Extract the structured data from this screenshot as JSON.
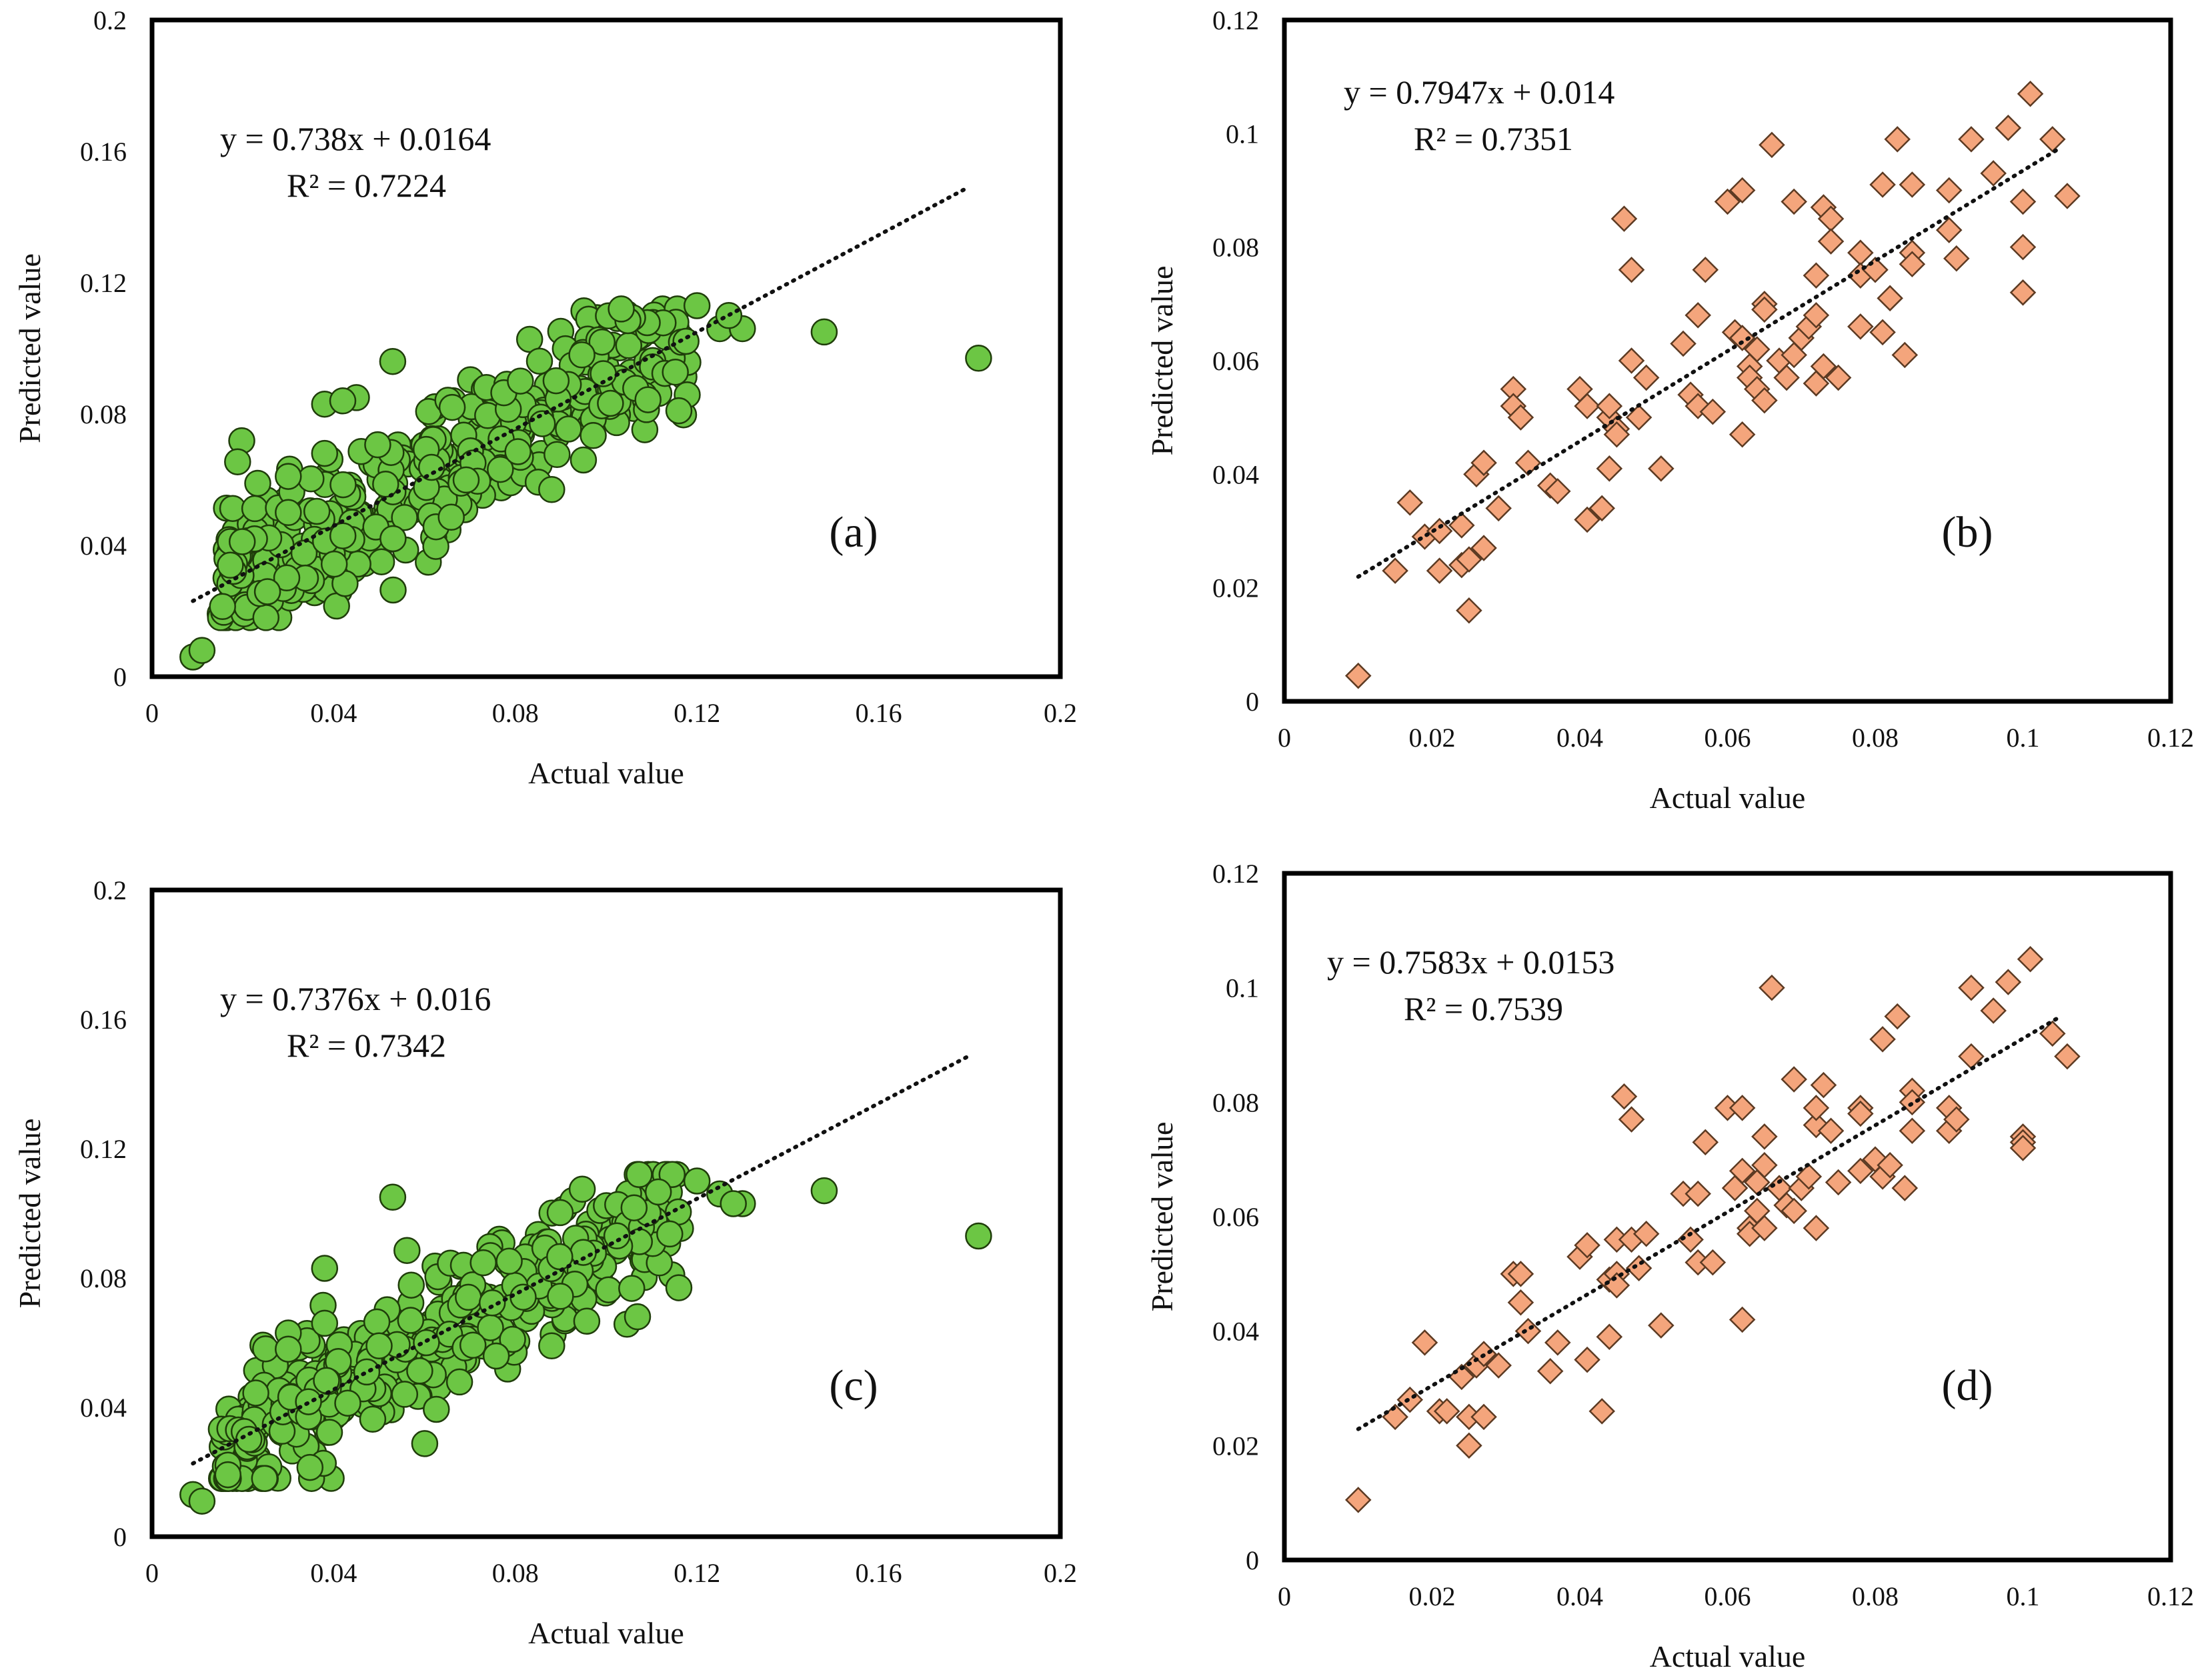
{
  "chart_data": [
    {
      "id": "a",
      "type": "scatter",
      "panel_label": "(a)",
      "xlabel": "Actual value",
      "ylabel": "Predicted value",
      "xlim": [
        0,
        0.2
      ],
      "ylim": [
        0,
        0.2
      ],
      "xticks": [
        "0",
        "0.04",
        "0.08",
        "0.12",
        "0.16",
        "0.2"
      ],
      "yticks": [
        "0",
        "0.04",
        "0.08",
        "0.12",
        "0.16",
        "0.2"
      ],
      "equation": "y = 0.738x + 0.0164",
      "r2": "R² = 0.7224",
      "trend": {
        "slope": 0.738,
        "intercept": 0.0164,
        "x_range": [
          0.009,
          0.18
        ]
      },
      "marker": "circle",
      "color": "#6cc644",
      "outliers": [
        [
          0.009,
          0.006
        ],
        [
          0.011,
          0.008
        ],
        [
          0.148,
          0.105
        ],
        [
          0.182,
          0.097
        ],
        [
          0.116,
          0.081
        ],
        [
          0.053,
          0.096
        ],
        [
          0.045,
          0.085
        ],
        [
          0.038,
          0.083
        ],
        [
          0.042,
          0.084
        ],
        [
          0.12,
          0.113
        ],
        [
          0.125,
          0.106
        ],
        [
          0.13,
          0.106
        ],
        [
          0.127,
          0.11
        ],
        [
          0.095,
          0.066
        ],
        [
          0.088,
          0.057
        ],
        [
          0.03,
          0.061
        ],
        [
          0.03,
          0.05
        ],
        [
          0.038,
          0.068
        ]
      ],
      "cloud": {
        "n": 430,
        "x_range": [
          0.015,
          0.118
        ],
        "seed": 11,
        "noise": 0.0115
      }
    },
    {
      "id": "b",
      "type": "scatter",
      "panel_label": "(b)",
      "xlabel": "Actual value",
      "ylabel": "Predicted value",
      "xlim": [
        0,
        0.12
      ],
      "ylim": [
        0,
        0.12
      ],
      "xticks": [
        "0",
        "0.02",
        "0.04",
        "0.06",
        "0.08",
        "0.1",
        "0.12"
      ],
      "yticks": [
        "0",
        "0.02",
        "0.04",
        "0.06",
        "0.08",
        "0.1",
        "0.12"
      ],
      "equation": "y = 0.7947x + 0.014",
      "r2": "R² = 0.7351",
      "trend": {
        "slope": 0.7947,
        "intercept": 0.014,
        "x_range": [
          0.01,
          0.105
        ]
      },
      "marker": "diamond",
      "color": "#f4a57c",
      "points": [
        [
          0.01,
          0.0045
        ],
        [
          0.015,
          0.023
        ],
        [
          0.017,
          0.035
        ],
        [
          0.019,
          0.029
        ],
        [
          0.021,
          0.023
        ],
        [
          0.021,
          0.03
        ],
        [
          0.024,
          0.024
        ],
        [
          0.024,
          0.031
        ],
        [
          0.025,
          0.016
        ],
        [
          0.025,
          0.025
        ],
        [
          0.026,
          0.04
        ],
        [
          0.027,
          0.027
        ],
        [
          0.027,
          0.042
        ],
        [
          0.029,
          0.034
        ],
        [
          0.031,
          0.055
        ],
        [
          0.031,
          0.052
        ],
        [
          0.032,
          0.05
        ],
        [
          0.033,
          0.042
        ],
        [
          0.036,
          0.038
        ],
        [
          0.037,
          0.037
        ],
        [
          0.04,
          0.055
        ],
        [
          0.041,
          0.052
        ],
        [
          0.041,
          0.032
        ],
        [
          0.043,
          0.034
        ],
        [
          0.044,
          0.041
        ],
        [
          0.044,
          0.05
        ],
        [
          0.044,
          0.052
        ],
        [
          0.045,
          0.048
        ],
        [
          0.045,
          0.047
        ],
        [
          0.046,
          0.085
        ],
        [
          0.047,
          0.076
        ],
        [
          0.047,
          0.06
        ],
        [
          0.048,
          0.05
        ],
        [
          0.049,
          0.057
        ],
        [
          0.051,
          0.041
        ],
        [
          0.054,
          0.063
        ],
        [
          0.055,
          0.054
        ],
        [
          0.056,
          0.068
        ],
        [
          0.056,
          0.052
        ],
        [
          0.057,
          0.076
        ],
        [
          0.058,
          0.051
        ],
        [
          0.06,
          0.088
        ],
        [
          0.061,
          0.065
        ],
        [
          0.062,
          0.09
        ],
        [
          0.062,
          0.047
        ],
        [
          0.062,
          0.064
        ],
        [
          0.063,
          0.059
        ],
        [
          0.063,
          0.057
        ],
        [
          0.064,
          0.055
        ],
        [
          0.064,
          0.062
        ],
        [
          0.065,
          0.07
        ],
        [
          0.065,
          0.069
        ],
        [
          0.065,
          0.053
        ],
        [
          0.066,
          0.098
        ],
        [
          0.067,
          0.06
        ],
        [
          0.068,
          0.057
        ],
        [
          0.069,
          0.088
        ],
        [
          0.069,
          0.061
        ],
        [
          0.07,
          0.064
        ],
        [
          0.071,
          0.066
        ],
        [
          0.072,
          0.068
        ],
        [
          0.072,
          0.056
        ],
        [
          0.072,
          0.075
        ],
        [
          0.073,
          0.087
        ],
        [
          0.073,
          0.059
        ],
        [
          0.074,
          0.085
        ],
        [
          0.074,
          0.081
        ],
        [
          0.075,
          0.057
        ],
        [
          0.078,
          0.079
        ],
        [
          0.078,
          0.075
        ],
        [
          0.078,
          0.066
        ],
        [
          0.08,
          0.076
        ],
        [
          0.081,
          0.091
        ],
        [
          0.081,
          0.065
        ],
        [
          0.082,
          0.071
        ],
        [
          0.083,
          0.099
        ],
        [
          0.084,
          0.061
        ],
        [
          0.085,
          0.091
        ],
        [
          0.085,
          0.079
        ],
        [
          0.085,
          0.077
        ],
        [
          0.09,
          0.09
        ],
        [
          0.09,
          0.083
        ],
        [
          0.091,
          0.078
        ],
        [
          0.093,
          0.099
        ],
        [
          0.096,
          0.093
        ],
        [
          0.098,
          0.101
        ],
        [
          0.1,
          0.088
        ],
        [
          0.1,
          0.08
        ],
        [
          0.1,
          0.072
        ],
        [
          0.101,
          0.107
        ],
        [
          0.104,
          0.099
        ],
        [
          0.106,
          0.089
        ]
      ]
    },
    {
      "id": "c",
      "type": "scatter",
      "panel_label": "(c)",
      "xlabel": "Actual value",
      "ylabel": "Predicted value",
      "xlim": [
        0,
        0.2
      ],
      "ylim": [
        0,
        0.2
      ],
      "xticks": [
        "0",
        "0.04",
        "0.08",
        "0.12",
        "0.16",
        "0.2"
      ],
      "yticks": [
        "0",
        "0.04",
        "0.08",
        "0.12",
        "0.16",
        "0.2"
      ],
      "equation": "y = 0.7376x + 0.016",
      "r2": "R² = 0.7342",
      "trend": {
        "slope": 0.7376,
        "intercept": 0.016,
        "x_range": [
          0.009,
          0.18
        ]
      },
      "marker": "circle",
      "color": "#6cc644",
      "outliers": [
        [
          0.009,
          0.013
        ],
        [
          0.011,
          0.011
        ],
        [
          0.148,
          0.107
        ],
        [
          0.182,
          0.093
        ],
        [
          0.116,
          0.077
        ],
        [
          0.053,
          0.105
        ],
        [
          0.038,
          0.083
        ],
        [
          0.12,
          0.11
        ],
        [
          0.125,
          0.106
        ],
        [
          0.13,
          0.103
        ],
        [
          0.128,
          0.103
        ],
        [
          0.088,
          0.059
        ],
        [
          0.03,
          0.063
        ],
        [
          0.03,
          0.058
        ],
        [
          0.05,
          0.059
        ],
        [
          0.038,
          0.066
        ]
      ],
      "cloud": {
        "n": 430,
        "x_range": [
          0.015,
          0.118
        ],
        "seed": 29,
        "noise": 0.0105
      }
    },
    {
      "id": "d",
      "type": "scatter",
      "panel_label": "(d)",
      "xlabel": "Actual value",
      "ylabel": "Predicted value",
      "xlim": [
        0,
        0.12
      ],
      "ylim": [
        0,
        0.12
      ],
      "xticks": [
        "0",
        "0.02",
        "0.04",
        "0.06",
        "0.08",
        "0.1",
        "0.12"
      ],
      "yticks": [
        "0",
        "0.02",
        "0.04",
        "0.06",
        "0.08",
        "0.1",
        "0.12"
      ],
      "equation": "y = 0.7583x + 0.0153",
      "r2": "R² = 0.7539",
      "trend": {
        "slope": 0.7583,
        "intercept": 0.0153,
        "x_range": [
          0.01,
          0.105
        ]
      },
      "marker": "diamond",
      "color": "#f4a57c",
      "points": [
        [
          0.01,
          0.0105
        ],
        [
          0.015,
          0.025
        ],
        [
          0.017,
          0.028
        ],
        [
          0.019,
          0.038
        ],
        [
          0.021,
          0.026
        ],
        [
          0.022,
          0.026
        ],
        [
          0.024,
          0.032
        ],
        [
          0.025,
          0.02
        ],
        [
          0.025,
          0.025
        ],
        [
          0.026,
          0.034
        ],
        [
          0.027,
          0.025
        ],
        [
          0.027,
          0.036
        ],
        [
          0.029,
          0.034
        ],
        [
          0.031,
          0.05
        ],
        [
          0.032,
          0.045
        ],
        [
          0.032,
          0.05
        ],
        [
          0.033,
          0.04
        ],
        [
          0.036,
          0.033
        ],
        [
          0.037,
          0.038
        ],
        [
          0.04,
          0.053
        ],
        [
          0.041,
          0.055
        ],
        [
          0.041,
          0.035
        ],
        [
          0.043,
          0.026
        ],
        [
          0.044,
          0.039
        ],
        [
          0.044,
          0.049
        ],
        [
          0.045,
          0.05
        ],
        [
          0.045,
          0.048
        ],
        [
          0.045,
          0.056
        ],
        [
          0.046,
          0.081
        ],
        [
          0.047,
          0.077
        ],
        [
          0.047,
          0.056
        ],
        [
          0.048,
          0.051
        ],
        [
          0.049,
          0.057
        ],
        [
          0.051,
          0.041
        ],
        [
          0.054,
          0.064
        ],
        [
          0.055,
          0.056
        ],
        [
          0.056,
          0.064
        ],
        [
          0.056,
          0.052
        ],
        [
          0.057,
          0.073
        ],
        [
          0.058,
          0.052
        ],
        [
          0.06,
          0.079
        ],
        [
          0.061,
          0.065
        ],
        [
          0.062,
          0.079
        ],
        [
          0.062,
          0.042
        ],
        [
          0.062,
          0.068
        ],
        [
          0.063,
          0.058
        ],
        [
          0.063,
          0.057
        ],
        [
          0.064,
          0.061
        ],
        [
          0.064,
          0.066
        ],
        [
          0.065,
          0.074
        ],
        [
          0.065,
          0.069
        ],
        [
          0.065,
          0.058
        ],
        [
          0.066,
          0.1
        ],
        [
          0.067,
          0.065
        ],
        [
          0.068,
          0.062
        ],
        [
          0.069,
          0.084
        ],
        [
          0.069,
          0.061
        ],
        [
          0.07,
          0.065
        ],
        [
          0.071,
          0.067
        ],
        [
          0.072,
          0.058
        ],
        [
          0.072,
          0.076
        ],
        [
          0.072,
          0.079
        ],
        [
          0.073,
          0.083
        ],
        [
          0.074,
          0.075
        ],
        [
          0.075,
          0.066
        ],
        [
          0.078,
          0.079
        ],
        [
          0.078,
          0.078
        ],
        [
          0.078,
          0.068
        ],
        [
          0.08,
          0.07
        ],
        [
          0.081,
          0.091
        ],
        [
          0.081,
          0.067
        ],
        [
          0.082,
          0.069
        ],
        [
          0.083,
          0.095
        ],
        [
          0.084,
          0.065
        ],
        [
          0.085,
          0.082
        ],
        [
          0.085,
          0.08
        ],
        [
          0.085,
          0.075
        ],
        [
          0.09,
          0.079
        ],
        [
          0.09,
          0.075
        ],
        [
          0.091,
          0.077
        ],
        [
          0.093,
          0.1
        ],
        [
          0.093,
          0.088
        ],
        [
          0.096,
          0.096
        ],
        [
          0.098,
          0.101
        ],
        [
          0.1,
          0.074
        ],
        [
          0.1,
          0.073
        ],
        [
          0.1,
          0.072
        ],
        [
          0.101,
          0.105
        ],
        [
          0.104,
          0.092
        ],
        [
          0.106,
          0.088
        ]
      ]
    }
  ]
}
